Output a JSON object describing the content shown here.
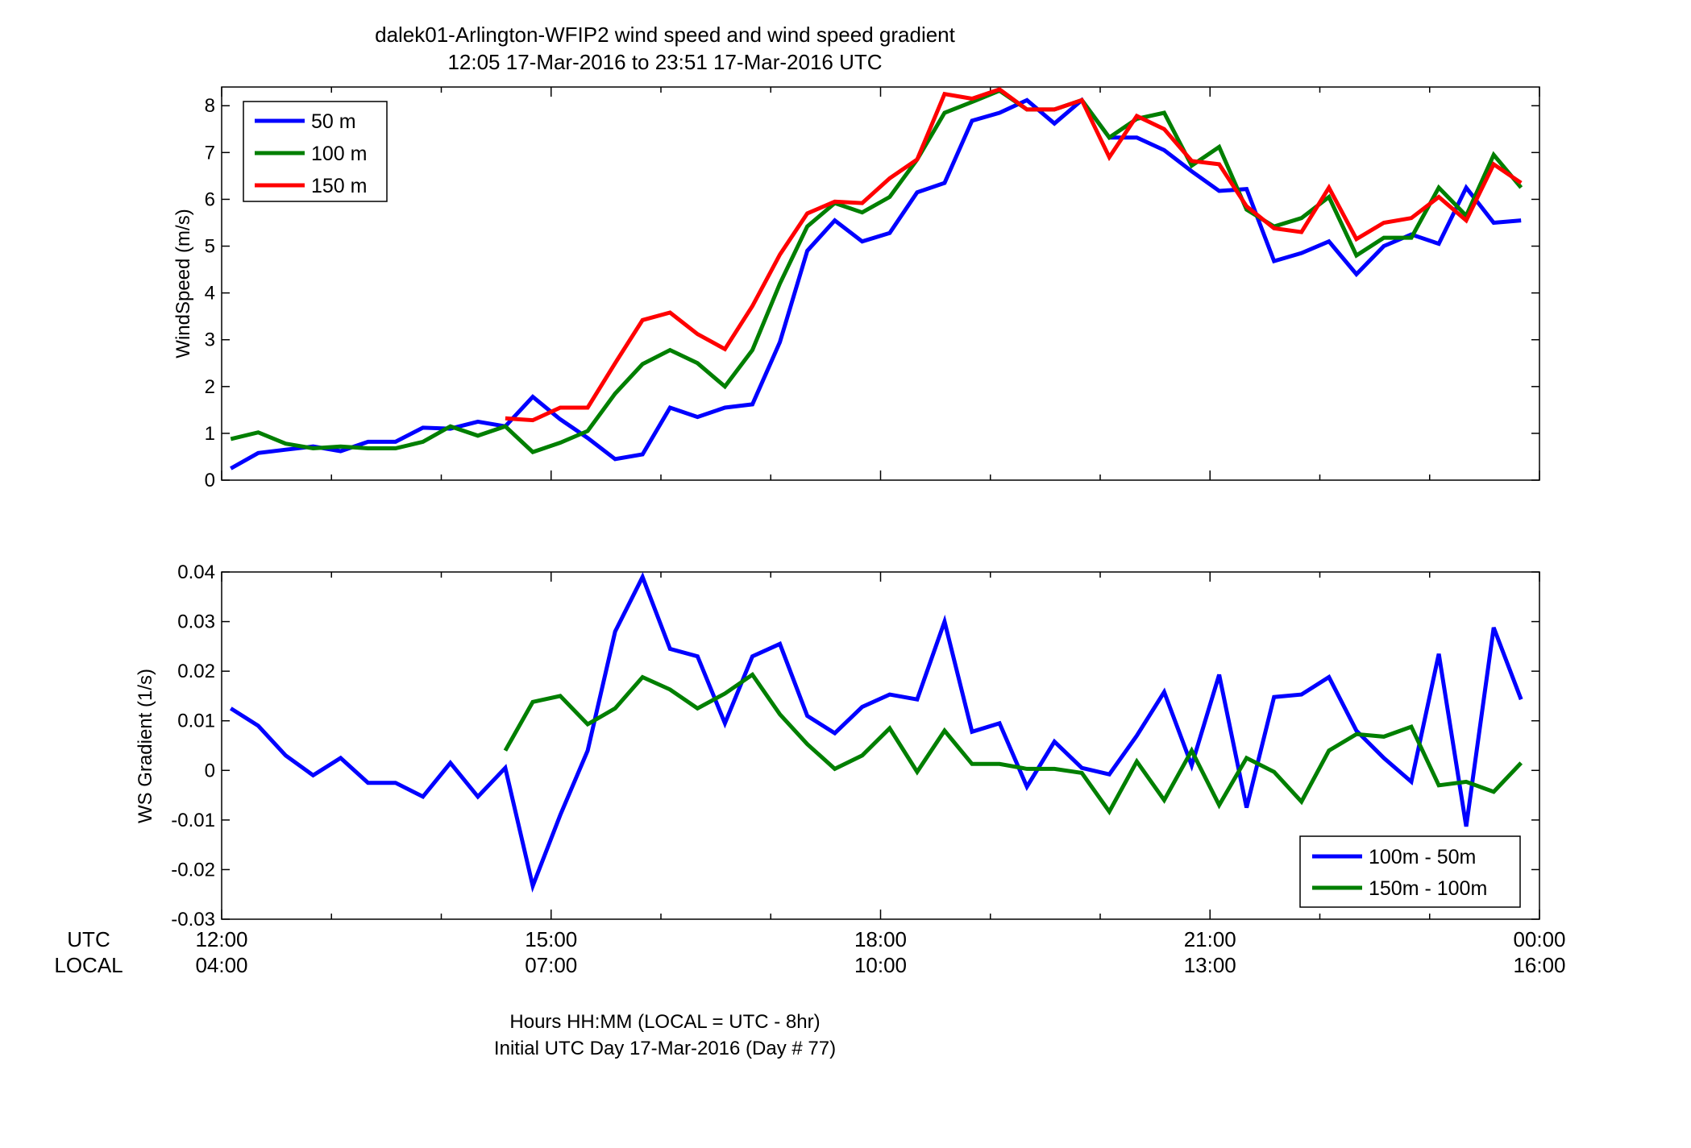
{
  "figure": {
    "title_line1": "dalek01-Arlington-WFIP2  wind speed and wind speed gradient",
    "title_line2": "12:05 17-Mar-2016 to 23:51 17-Mar-2016  UTC",
    "xlabel_line1": "Hours HH:MM  (LOCAL = UTC - 8hr)",
    "xlabel_line2": "Initial UTC Day 17-Mar-2016 (Day # 77)",
    "utc_label": "UTC",
    "local_label": "LOCAL",
    "utc_ticks": [
      "12:00",
      "15:00",
      "18:00",
      "21:00",
      "00:00"
    ],
    "local_ticks": [
      "04:00",
      "07:00",
      "10:00",
      "13:00",
      "16:00"
    ],
    "colors": {
      "blue": "#0000ff",
      "green": "#007f00",
      "red": "#ff0000"
    }
  },
  "chart_data": [
    {
      "type": "line",
      "ylabel": "WindSpeed (m/s)",
      "xlabel": "",
      "xlim": [
        0,
        12
      ],
      "ylim": [
        0,
        8.4
      ],
      "yticks": [
        0,
        1,
        2,
        3,
        4,
        5,
        6,
        7,
        8
      ],
      "legend_position": "top-left",
      "grid": false,
      "x": [
        0.083,
        0.333,
        0.583,
        0.833,
        1.083,
        1.333,
        1.583,
        1.833,
        2.083,
        2.333,
        2.583,
        2.833,
        3.083,
        3.333,
        3.583,
        3.833,
        4.083,
        4.333,
        4.583,
        4.833,
        5.083,
        5.333,
        5.583,
        5.833,
        6.083,
        6.333,
        6.583,
        6.833,
        7.083,
        7.333,
        7.583,
        7.833,
        8.083,
        8.333,
        8.583,
        8.833,
        9.083,
        9.333,
        9.583,
        9.833,
        10.083,
        10.333,
        10.583,
        10.833,
        11.083,
        11.333,
        11.583,
        11.833,
        11.95
      ],
      "series": [
        {
          "name": "50 m",
          "color": "#0000ff",
          "values": [
            0.25,
            0.58,
            0.65,
            0.72,
            0.62,
            0.82,
            0.82,
            1.12,
            1.1,
            1.25,
            1.15,
            1.78,
            1.3,
            0.9,
            0.45,
            0.55,
            1.55,
            1.35,
            1.55,
            1.62,
            2.95,
            4.9,
            5.55,
            5.1,
            5.28,
            6.15,
            6.35,
            7.68,
            7.85,
            8.12,
            7.62,
            8.12,
            7.32,
            7.32,
            7.05,
            6.6,
            6.18,
            6.22,
            4.68,
            4.85,
            5.1,
            4.4,
            5.0,
            5.25,
            5.05,
            6.25,
            5.5,
            5.55,
            null
          ]
        },
        {
          "name": "100 m",
          "color": "#007f00",
          "values": [
            0.88,
            1.02,
            0.78,
            0.68,
            0.72,
            0.68,
            0.68,
            0.82,
            1.15,
            0.95,
            1.15,
            0.6,
            0.8,
            1.05,
            1.85,
            2.48,
            2.78,
            2.5,
            2.0,
            2.78,
            4.2,
            5.42,
            5.92,
            5.72,
            6.05,
            6.85,
            7.85,
            8.08,
            8.32,
            7.92,
            7.92,
            8.12,
            7.32,
            7.72,
            7.85,
            6.72,
            7.12,
            5.78,
            5.42,
            5.6,
            6.05,
            4.8,
            5.18,
            5.18,
            6.25,
            5.65,
            6.95,
            6.25,
            null
          ]
        },
        {
          "name": "150 m",
          "color": "#ff0000",
          "values": [
            null,
            null,
            null,
            null,
            null,
            null,
            null,
            null,
            null,
            null,
            1.32,
            1.28,
            1.55,
            1.55,
            2.5,
            3.42,
            3.58,
            3.12,
            2.8,
            3.72,
            4.82,
            5.7,
            5.95,
            5.92,
            6.45,
            6.85,
            8.25,
            8.15,
            8.35,
            7.92,
            7.92,
            8.12,
            6.9,
            7.78,
            7.5,
            6.82,
            6.75,
            5.85,
            5.38,
            5.3,
            6.25,
            5.15,
            5.5,
            5.6,
            6.05,
            5.55,
            6.75,
            6.35,
            null
          ]
        }
      ]
    },
    {
      "type": "line",
      "ylabel": "WS Gradient (1/s)",
      "xlabel": "",
      "xlim": [
        0,
        12
      ],
      "ylim": [
        -0.03,
        0.04
      ],
      "yticks": [
        -0.03,
        -0.02,
        -0.01,
        0,
        0.01,
        0.02,
        0.03,
        0.04
      ],
      "ytick_labels": [
        "-0.03",
        "-0.02",
        "-0.01",
        "0",
        "0.01",
        "0.02",
        "0.03",
        "0.04"
      ],
      "legend_position": "bottom-right",
      "grid": false,
      "x": [
        0.083,
        0.333,
        0.583,
        0.833,
        1.083,
        1.333,
        1.583,
        1.833,
        2.083,
        2.333,
        2.583,
        2.833,
        3.083,
        3.333,
        3.583,
        3.833,
        4.083,
        4.333,
        4.583,
        4.833,
        5.083,
        5.333,
        5.583,
        5.833,
        6.083,
        6.333,
        6.583,
        6.833,
        7.083,
        7.333,
        7.583,
        7.833,
        8.083,
        8.333,
        8.583,
        8.833,
        9.083,
        9.333,
        9.583,
        9.833,
        10.083,
        10.333,
        10.583,
        10.833,
        11.083,
        11.333,
        11.583,
        11.833,
        11.95
      ],
      "series": [
        {
          "name": "100m - 50m",
          "color": "#0000ff",
          "values": [
            0.0125,
            0.009,
            0.003,
            -0.001,
            0.0025,
            -0.0025,
            -0.0025,
            -0.0053,
            0.0015,
            -0.0053,
            0.0005,
            -0.0233,
            -0.009,
            0.004,
            0.028,
            0.039,
            0.0245,
            0.023,
            0.0095,
            0.023,
            0.0255,
            0.011,
            0.0075,
            0.0128,
            0.0153,
            0.0143,
            0.03,
            0.0078,
            0.0095,
            -0.0033,
            0.0058,
            0.0005,
            -0.0008,
            0.007,
            0.0158,
            0.001,
            0.0193,
            -0.0075,
            0.0148,
            0.0153,
            0.0188,
            0.008,
            0.0025,
            -0.0023,
            0.0235,
            -0.0113,
            0.0288,
            0.0143,
            null
          ]
        },
        {
          "name": "150m - 100m",
          "color": "#007f00",
          "values": [
            null,
            null,
            null,
            null,
            null,
            null,
            null,
            null,
            null,
            null,
            0.004,
            0.0138,
            0.015,
            0.0093,
            0.0125,
            0.0188,
            0.0163,
            0.0125,
            0.0155,
            0.0193,
            0.0113,
            0.0053,
            0.0003,
            0.003,
            0.0085,
            -0.0003,
            0.008,
            0.0013,
            0.0013,
            0.0003,
            0.0003,
            -0.0005,
            -0.0083,
            0.0018,
            -0.006,
            0.004,
            -0.007,
            0.0025,
            -0.0003,
            -0.0063,
            0.004,
            0.0073,
            0.0068,
            0.0088,
            -0.003,
            -0.0023,
            -0.0043,
            0.0015,
            null
          ]
        }
      ]
    }
  ]
}
